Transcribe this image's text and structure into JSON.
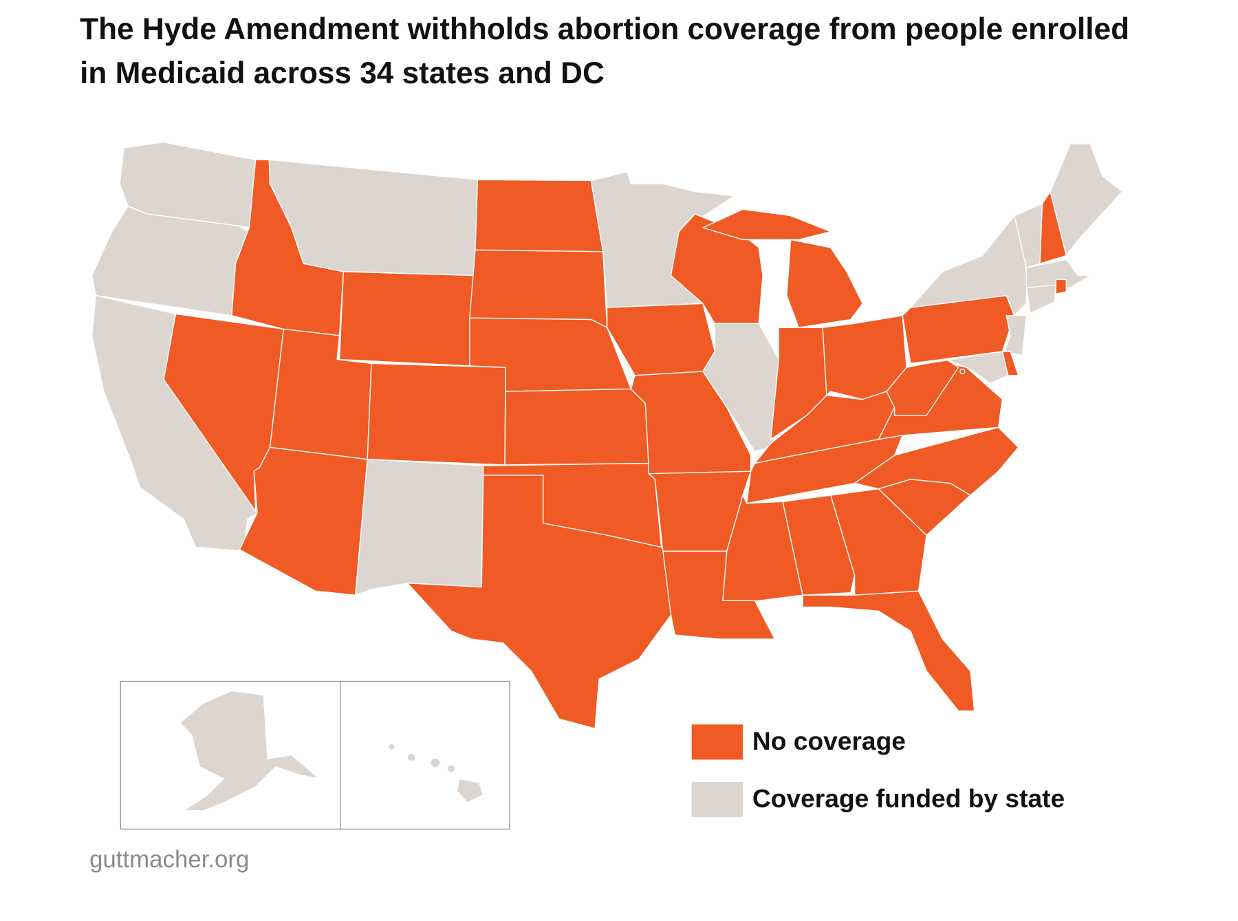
{
  "title": "The Hyde Amendment withholds abortion coverage from people enrolled in Medicaid across 34 states and DC",
  "legend": [
    {
      "label": "No coverage",
      "color": "#f05a24"
    },
    {
      "label": "Coverage funded by state",
      "color": "#ddd5cf"
    }
  ],
  "source": "guttmacher.org"
}
